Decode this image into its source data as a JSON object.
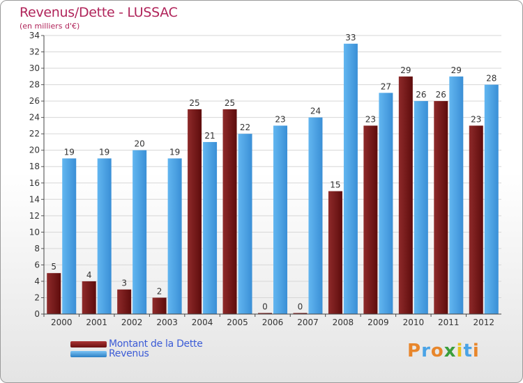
{
  "chart_data": {
    "type": "bar",
    "title": "Revenus/Dette - LUSSAC",
    "subtitle": "(en milliers d'€)",
    "categories": [
      "2000",
      "2001",
      "2002",
      "2003",
      "2004",
      "2005",
      "2006",
      "2007",
      "2008",
      "2009",
      "2010",
      "2011",
      "2012"
    ],
    "series": [
      {
        "name": "Montant de la Dette",
        "color": "#7a1a1a",
        "values": [
          5,
          4,
          3,
          2,
          25,
          25,
          0,
          0,
          15,
          23,
          29,
          26,
          23
        ]
      },
      {
        "name": "Revenus",
        "color": "#4aa3e6",
        "values": [
          19,
          19,
          20,
          19,
          21,
          22,
          23,
          24,
          33,
          27,
          26,
          29,
          28
        ]
      }
    ],
    "yticks": [
      "0",
      "2",
      "4",
      "6",
      "8",
      "10",
      "12",
      "14",
      "16",
      "18",
      "20",
      "22",
      "24",
      "26",
      "28",
      "30",
      "32",
      "34"
    ],
    "ylim": [
      0,
      34
    ],
    "grid": true,
    "legend_position": "bottom-left"
  },
  "logo": {
    "text": "Proxiti",
    "letters": [
      "P",
      "r",
      "o",
      "x",
      "i",
      "t",
      "i"
    ],
    "colors": [
      "#e8862b",
      "#4aa3e6",
      "#e8862b",
      "#3b9e3b",
      "#e8c21f",
      "#4aa3e6",
      "#e8862b"
    ]
  }
}
